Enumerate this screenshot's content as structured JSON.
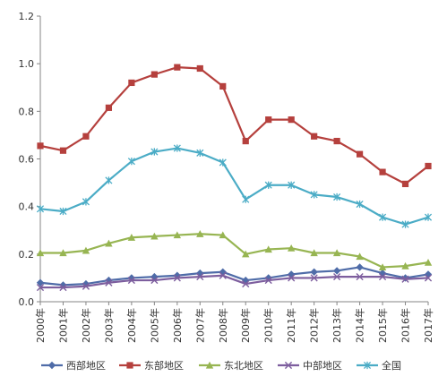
{
  "chart_data": {
    "type": "line",
    "title": "",
    "xlabel": "",
    "ylabel": "",
    "ylim": [
      0,
      1.2
    ],
    "yticks": [
      "0.0",
      "0.2",
      "0.4",
      "0.6",
      "0.8",
      "1.0",
      "1.2"
    ],
    "categories": [
      "2000年",
      "2001年",
      "2002年",
      "2003年",
      "2004年",
      "2005年",
      "2006年",
      "2007年",
      "2008年",
      "2009年",
      "2010年",
      "2011年",
      "2012年",
      "2013年",
      "2014年",
      "2015年",
      "2016年",
      "2017年"
    ],
    "grid": false,
    "legend_position": "bottom",
    "series": [
      {
        "name": "西部地区",
        "color": "#4F6CA8",
        "marker": "diamond",
        "values": [
          0.08,
          0.07,
          0.075,
          0.09,
          0.1,
          0.105,
          0.11,
          0.12,
          0.125,
          0.09,
          0.1,
          0.115,
          0.125,
          0.13,
          0.145,
          0.12,
          0.1,
          0.115
        ]
      },
      {
        "name": "东部地区",
        "color": "#B5403D",
        "marker": "square",
        "values": [
          0.655,
          0.635,
          0.695,
          0.815,
          0.92,
          0.955,
          0.985,
          0.98,
          0.905,
          0.675,
          0.765,
          0.765,
          0.695,
          0.675,
          0.62,
          0.545,
          0.495,
          0.57
        ]
      },
      {
        "name": "东北地区",
        "color": "#97B552",
        "marker": "triangle",
        "values": [
          0.205,
          0.205,
          0.215,
          0.245,
          0.27,
          0.275,
          0.28,
          0.285,
          0.28,
          0.2,
          0.22,
          0.225,
          0.205,
          0.205,
          0.19,
          0.145,
          0.15,
          0.165
        ]
      },
      {
        "name": "中部地区",
        "color": "#7D5E9E",
        "marker": "x",
        "values": [
          0.06,
          0.06,
          0.065,
          0.08,
          0.09,
          0.09,
          0.1,
          0.105,
          0.11,
          0.075,
          0.09,
          0.1,
          0.1,
          0.105,
          0.105,
          0.105,
          0.095,
          0.1
        ]
      },
      {
        "name": "全国",
        "color": "#4BACC6",
        "marker": "asterisk",
        "values": [
          0.39,
          0.38,
          0.42,
          0.51,
          0.59,
          0.63,
          0.645,
          0.625,
          0.585,
          0.43,
          0.49,
          0.49,
          0.45,
          0.44,
          0.41,
          0.355,
          0.325,
          0.355
        ]
      }
    ]
  }
}
